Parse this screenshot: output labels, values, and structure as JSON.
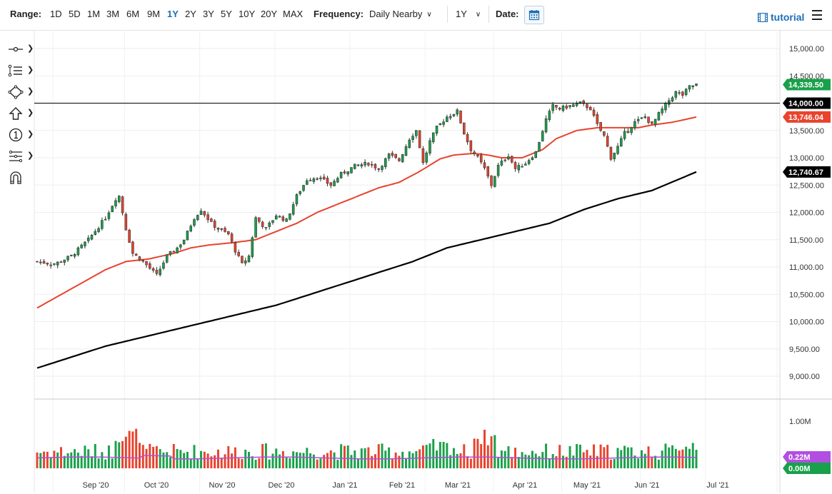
{
  "toolbar": {
    "range_label": "Range:",
    "ranges": [
      "1D",
      "5D",
      "1M",
      "3M",
      "6M",
      "9M",
      "1Y",
      "2Y",
      "3Y",
      "5Y",
      "10Y",
      "20Y",
      "MAX"
    ],
    "active_range": "1Y",
    "frequency_label": "Frequency:",
    "frequency_value": "Daily Nearby",
    "period_value": "1Y",
    "date_label": "Date:",
    "tutorial_label": "tutorial"
  },
  "tools": [
    "crosshair-icon",
    "line-tools-icon",
    "shape-tools-icon",
    "arrow-tools-icon",
    "annotation-icon",
    "fibonacci-icon",
    "magnet-icon"
  ],
  "chart_data": {
    "type": "candlestick",
    "price_axis": {
      "ticks": [
        "15,000.00",
        "14,500.00",
        "14,000.00",
        "13,500.00",
        "13,000.00",
        "12,500.00",
        "12,000.00",
        "11,500.00",
        "11,000.00",
        "10,500.00",
        "10,000.00",
        "9,500.00",
        "9,000.00"
      ],
      "ylim": [
        8800,
        15100
      ]
    },
    "volume_axis": {
      "ticks": [
        "1.00M"
      ],
      "ylim": [
        0,
        1.1
      ]
    },
    "x_labels": [
      "Sep '20",
      "Oct '20",
      "Nov '20",
      "Dec '20",
      "Jan '21",
      "Feb '21",
      "Mar '21",
      "Apr '21",
      "May '21",
      "Jun '21",
      "Jul '21"
    ],
    "horizontal_line": {
      "value": 14000.0,
      "label": "14,000.00",
      "color": "#000000"
    },
    "badges": [
      {
        "name": "last-price",
        "label": "14,339.50",
        "value": 14339.5,
        "color": "#19a04b"
      },
      {
        "name": "ma50",
        "label": "13,746.04",
        "value": 13746.04,
        "color": "#e8432d"
      },
      {
        "name": "ma200",
        "label": "12,740.67",
        "value": 12740.67,
        "color": "#000000"
      },
      {
        "name": "vol-ma",
        "label": "0.22M",
        "value": 0.22,
        "color": "#b24fe0",
        "panel": "volume"
      },
      {
        "name": "vol-zero",
        "label": "0.00M",
        "value": 0.0,
        "color": "#19a04b",
        "panel": "volume"
      }
    ],
    "close_anchors": [
      [
        0,
        11100
      ],
      [
        5,
        11050
      ],
      [
        10,
        11200
      ],
      [
        15,
        11500
      ],
      [
        20,
        11900
      ],
      [
        23,
        12250
      ],
      [
        24,
        12300
      ],
      [
        26,
        11700
      ],
      [
        28,
        11250
      ],
      [
        31,
        11100
      ],
      [
        35,
        10850
      ],
      [
        38,
        11200
      ],
      [
        41,
        11350
      ],
      [
        43,
        11500
      ],
      [
        46,
        11900
      ],
      [
        48,
        12050
      ],
      [
        51,
        11800
      ],
      [
        53,
        11700
      ],
      [
        56,
        11600
      ],
      [
        58,
        11300
      ],
      [
        60,
        11050
      ],
      [
        62,
        11200
      ],
      [
        64,
        11900
      ],
      [
        67,
        11700
      ],
      [
        70,
        11950
      ],
      [
        73,
        11850
      ],
      [
        76,
        12300
      ],
      [
        79,
        12600
      ],
      [
        82,
        12650
      ],
      [
        86,
        12500
      ],
      [
        89,
        12700
      ],
      [
        93,
        12850
      ],
      [
        97,
        12900
      ],
      [
        100,
        12800
      ],
      [
        103,
        13050
      ],
      [
        106,
        12950
      ],
      [
        109,
        13350
      ],
      [
        111,
        13500
      ],
      [
        113,
        12900
      ],
      [
        115,
        13300
      ],
      [
        117,
        13550
      ],
      [
        120,
        13750
      ],
      [
        123,
        13850
      ],
      [
        125,
        13450
      ],
      [
        127,
        13150
      ],
      [
        129,
        13000
      ],
      [
        131,
        12800
      ],
      [
        133,
        12500
      ],
      [
        135,
        12850
      ],
      [
        138,
        13050
      ],
      [
        140,
        12800
      ],
      [
        143,
        12900
      ],
      [
        146,
        13100
      ],
      [
        149,
        13700
      ],
      [
        151,
        13950
      ],
      [
        153,
        13900
      ],
      [
        156,
        13950
      ],
      [
        159,
        14000
      ],
      [
        162,
        13900
      ],
      [
        164,
        13600
      ],
      [
        166,
        13400
      ],
      [
        168,
        13000
      ],
      [
        170,
        13200
      ],
      [
        172,
        13450
      ],
      [
        175,
        13650
      ],
      [
        178,
        13750
      ],
      [
        180,
        13600
      ],
      [
        182,
        13800
      ],
      [
        185,
        14050
      ],
      [
        187,
        14200
      ],
      [
        189,
        14150
      ],
      [
        191,
        14300
      ],
      [
        193,
        14339.5
      ]
    ],
    "ma50_points": [
      [
        0,
        10250
      ],
      [
        10,
        10600
      ],
      [
        20,
        10950
      ],
      [
        26,
        11100
      ],
      [
        33,
        11150
      ],
      [
        40,
        11250
      ],
      [
        45,
        11350
      ],
      [
        50,
        11400
      ],
      [
        58,
        11450
      ],
      [
        64,
        11500
      ],
      [
        70,
        11650
      ],
      [
        76,
        11800
      ],
      [
        82,
        12000
      ],
      [
        90,
        12200
      ],
      [
        96,
        12350
      ],
      [
        100,
        12450
      ],
      [
        106,
        12550
      ],
      [
        112,
        12750
      ],
      [
        118,
        12980
      ],
      [
        122,
        13050
      ],
      [
        128,
        13080
      ],
      [
        132,
        13050
      ],
      [
        136,
        13000
      ],
      [
        142,
        13000
      ],
      [
        148,
        13150
      ],
      [
        152,
        13350
      ],
      [
        158,
        13500
      ],
      [
        164,
        13550
      ],
      [
        170,
        13550
      ],
      [
        176,
        13550
      ],
      [
        180,
        13600
      ],
      [
        186,
        13650
      ],
      [
        193,
        13746
      ]
    ],
    "ma200_points": [
      [
        0,
        9150
      ],
      [
        10,
        9350
      ],
      [
        20,
        9550
      ],
      [
        30,
        9700
      ],
      [
        40,
        9850
      ],
      [
        50,
        10000
      ],
      [
        60,
        10150
      ],
      [
        70,
        10300
      ],
      [
        80,
        10500
      ],
      [
        90,
        10700
      ],
      [
        100,
        10900
      ],
      [
        110,
        11100
      ],
      [
        120,
        11350
      ],
      [
        130,
        11500
      ],
      [
        140,
        11650
      ],
      [
        150,
        11800
      ],
      [
        160,
        12050
      ],
      [
        170,
        12250
      ],
      [
        180,
        12400
      ],
      [
        193,
        12740.67
      ]
    ],
    "volume_ma": 0.22,
    "last_value": 14339.5
  }
}
